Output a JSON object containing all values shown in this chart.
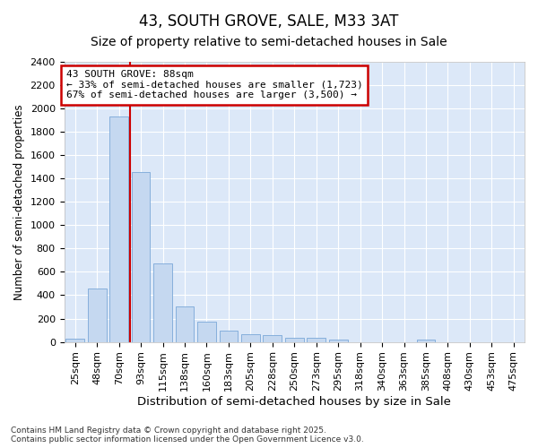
{
  "title": "43, SOUTH GROVE, SALE, M33 3AT",
  "subtitle": "Size of property relative to semi-detached houses in Sale",
  "xlabel": "Distribution of semi-detached houses by size in Sale",
  "ylabel": "Number of semi-detached properties",
  "categories": [
    "25sqm",
    "48sqm",
    "70sqm",
    "93sqm",
    "115sqm",
    "138sqm",
    "160sqm",
    "183sqm",
    "205sqm",
    "228sqm",
    "250sqm",
    "273sqm",
    "295sqm",
    "318sqm",
    "340sqm",
    "363sqm",
    "385sqm",
    "408sqm",
    "430sqm",
    "453sqm",
    "475sqm"
  ],
  "values": [
    25,
    455,
    1935,
    1455,
    670,
    305,
    175,
    100,
    65,
    60,
    35,
    35,
    20,
    0,
    0,
    0,
    20,
    0,
    0,
    0,
    0
  ],
  "bar_color": "#c5d8f0",
  "bar_edge_color": "#7aa8d8",
  "vline_x_index": 2,
  "vline_color": "#cc0000",
  "annotation_text": "43 SOUTH GROVE: 88sqm\n← 33% of semi-detached houses are smaller (1,723)\n67% of semi-detached houses are larger (3,500) →",
  "annotation_box_color": "white",
  "annotation_box_edge_color": "#cc0000",
  "ylim": [
    0,
    2400
  ],
  "yticks": [
    0,
    200,
    400,
    600,
    800,
    1000,
    1200,
    1400,
    1600,
    1800,
    2000,
    2200,
    2400
  ],
  "background_color": "#ffffff",
  "plot_bg_color": "#dce8f8",
  "grid_color": "#ffffff",
  "footnote": "Contains HM Land Registry data © Crown copyright and database right 2025.\nContains public sector information licensed under the Open Government Licence v3.0.",
  "title_fontsize": 12,
  "subtitle_fontsize": 10,
  "xlabel_fontsize": 9.5,
  "ylabel_fontsize": 8.5,
  "tick_fontsize": 8,
  "footnote_fontsize": 6.5,
  "annotation_fontsize": 8
}
